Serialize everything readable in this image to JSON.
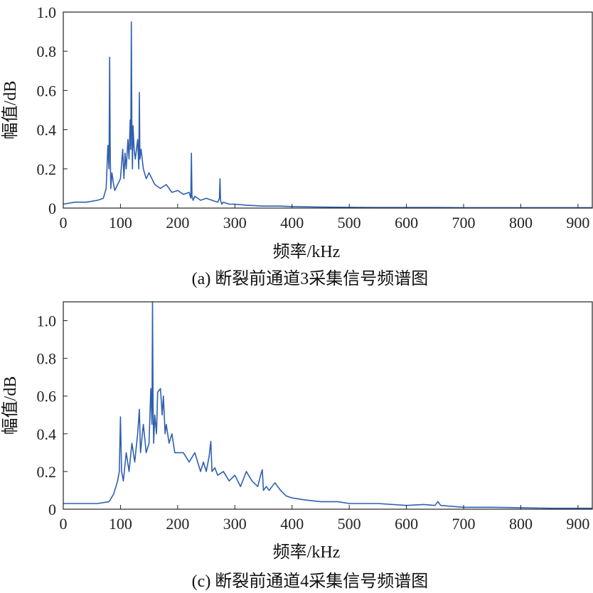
{
  "colors": {
    "series": "#2f5fb0",
    "axis": "#222222"
  },
  "charts": [
    {
      "caption": "(a) 断裂前通道3采集信号频谱图"
    },
    {
      "caption": "(c) 断裂前通道4采集信号频谱图"
    }
  ],
  "chart_data": [
    {
      "type": "line",
      "xlabel": "频率/kHz",
      "ylabel": "幅值/dB",
      "xlim": [
        0,
        925
      ],
      "ylim": [
        0,
        1.0
      ],
      "xticks": [
        "0",
        "100",
        "200",
        "300",
        "400",
        "500",
        "600",
        "700",
        "800",
        "900"
      ],
      "yticks": [
        "0",
        "0.2",
        "0.4",
        "0.6",
        "0.8",
        "1.0"
      ],
      "series": [
        {
          "x": [
            0,
            20,
            40,
            60,
            70,
            75,
            78,
            80,
            81,
            82,
            83,
            85,
            88,
            90,
            95,
            100,
            104,
            106,
            108,
            110,
            113,
            115,
            117,
            118,
            119,
            120,
            121,
            122,
            124,
            126,
            130,
            132,
            133,
            134,
            136,
            140,
            145,
            150,
            160,
            170,
            180,
            190,
            200,
            210,
            220,
            223,
            224,
            225,
            226,
            227,
            230,
            240,
            250,
            260,
            270,
            273,
            274,
            275,
            276,
            277,
            280,
            290,
            300,
            320,
            350,
            380,
            400,
            450,
            500,
            550,
            600,
            650,
            700,
            750,
            800,
            850,
            900,
            925
          ],
          "y": [
            0.02,
            0.03,
            0.03,
            0.04,
            0.05,
            0.1,
            0.32,
            0.2,
            0.77,
            0.3,
            0.1,
            0.18,
            0.12,
            0.09,
            0.12,
            0.15,
            0.3,
            0.15,
            0.28,
            0.2,
            0.35,
            0.25,
            0.45,
            0.3,
            0.95,
            0.4,
            0.2,
            0.42,
            0.3,
            0.25,
            0.35,
            0.2,
            0.59,
            0.25,
            0.3,
            0.2,
            0.15,
            0.18,
            0.12,
            0.1,
            0.12,
            0.08,
            0.09,
            0.07,
            0.08,
            0.05,
            0.28,
            0.06,
            0.05,
            0.04,
            0.06,
            0.04,
            0.05,
            0.04,
            0.03,
            0.05,
            0.15,
            0.04,
            0.03,
            0.02,
            0.03,
            0.02,
            0.02,
            0.015,
            0.01,
            0.01,
            0.008,
            0.005,
            0.004,
            0.003,
            0.003,
            0.003,
            0.002,
            0.002,
            0.002,
            0.002,
            0.002,
            0.002
          ]
        }
      ]
    },
    {
      "type": "line",
      "xlabel": "频率/kHz",
      "ylabel": "幅值/dB",
      "xlim": [
        0,
        925
      ],
      "ylim": [
        0,
        1.1
      ],
      "xticks": [
        "0",
        "100",
        "200",
        "300",
        "400",
        "500",
        "600",
        "700",
        "800",
        "900"
      ],
      "yticks": [
        "0",
        "0.2",
        "0.4",
        "0.6",
        "0.8",
        "1.0"
      ],
      "series": [
        {
          "x": [
            0,
            20,
            40,
            60,
            80,
            88,
            95,
            98,
            100,
            102,
            105,
            110,
            115,
            120,
            125,
            130,
            133,
            135,
            140,
            145,
            150,
            153,
            155,
            156,
            157,
            158,
            160,
            163,
            165,
            170,
            173,
            175,
            178,
            180,
            185,
            190,
            195,
            200,
            210,
            220,
            230,
            240,
            245,
            250,
            255,
            258,
            260,
            265,
            270,
            280,
            290,
            300,
            310,
            320,
            330,
            340,
            345,
            348,
            350,
            355,
            360,
            370,
            380,
            390,
            400,
            420,
            450,
            480,
            500,
            550,
            600,
            630,
            650,
            655,
            660,
            700,
            750,
            800,
            850,
            900,
            925
          ],
          "y": [
            0.03,
            0.03,
            0.03,
            0.03,
            0.04,
            0.08,
            0.15,
            0.2,
            0.49,
            0.2,
            0.15,
            0.3,
            0.2,
            0.35,
            0.25,
            0.4,
            0.53,
            0.3,
            0.45,
            0.3,
            0.35,
            0.64,
            0.45,
            1.1,
            0.55,
            0.35,
            0.5,
            0.4,
            0.62,
            0.64,
            0.5,
            0.6,
            0.4,
            0.45,
            0.35,
            0.4,
            0.3,
            0.3,
            0.3,
            0.25,
            0.3,
            0.2,
            0.25,
            0.2,
            0.28,
            0.36,
            0.2,
            0.22,
            0.18,
            0.2,
            0.15,
            0.18,
            0.12,
            0.2,
            0.15,
            0.12,
            0.18,
            0.21,
            0.1,
            0.12,
            0.1,
            0.14,
            0.1,
            0.07,
            0.06,
            0.05,
            0.04,
            0.04,
            0.03,
            0.03,
            0.02,
            0.025,
            0.02,
            0.04,
            0.02,
            0.01,
            0.01,
            0.008,
            0.005,
            0.005,
            0.005
          ]
        }
      ]
    }
  ]
}
